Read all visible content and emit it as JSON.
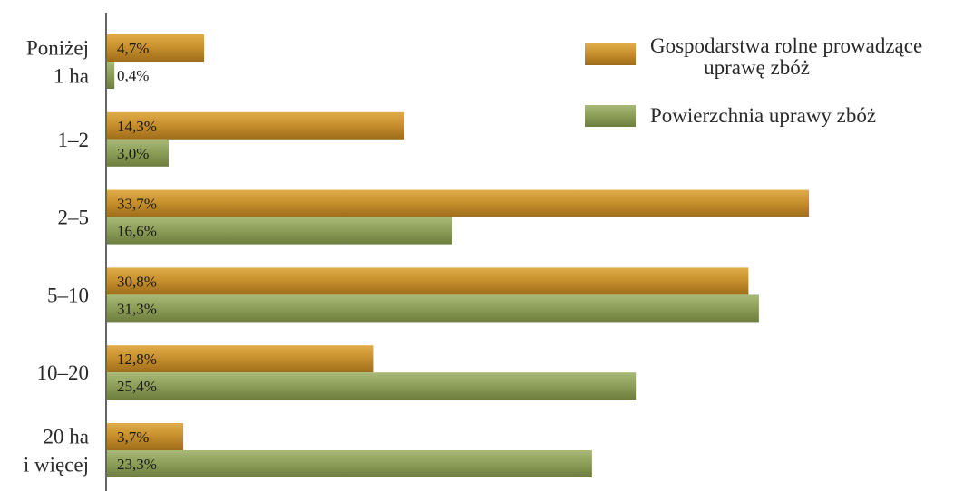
{
  "chart_data": {
    "type": "bar",
    "orientation": "horizontal",
    "categories": [
      [
        "Poniżej",
        "1 ha"
      ],
      [
        "1–2"
      ],
      [
        "2–5"
      ],
      [
        "5–10"
      ],
      [
        "10–20"
      ],
      [
        "20 ha",
        "i więcej"
      ]
    ],
    "series": [
      {
        "name": [
          "Gospodarstwa rolne prowadzące",
          "uprawę zbóż"
        ],
        "values": [
          4.7,
          14.3,
          33.7,
          30.8,
          12.8,
          3.7
        ],
        "labels": [
          "4,7%",
          "14,3%",
          "33,7%",
          "30,8%",
          "12,8%",
          "3,7%"
        ],
        "color": "#c8912e"
      },
      {
        "name": [
          "Powierzchnia uprawy zbóż"
        ],
        "values": [
          0.4,
          3.0,
          16.6,
          31.3,
          25.4,
          23.3
        ],
        "labels": [
          "0,4%",
          "3,0%",
          "16,6%",
          "31,3%",
          "25,4%",
          "23,3%"
        ],
        "color": "#8fa05a"
      }
    ],
    "title": "",
    "xlabel": "",
    "ylabel": "",
    "xlim": [
      0,
      35
    ],
    "grid": false,
    "legend_position": "top-right"
  }
}
